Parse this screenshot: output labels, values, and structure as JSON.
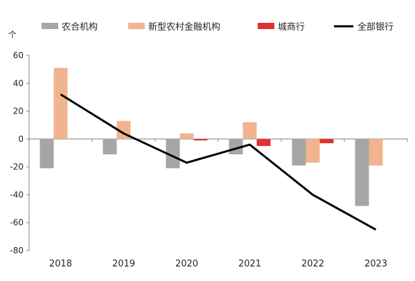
{
  "chart_data": {
    "type": "bar",
    "y_unit_label": "个",
    "categories": [
      "2018",
      "2019",
      "2020",
      "2021",
      "2022",
      "2023"
    ],
    "ylim": [
      -80,
      60
    ],
    "yticks": [
      60,
      40,
      20,
      0,
      -20,
      -40,
      -60,
      -80
    ],
    "grid": false,
    "legend_position": "top",
    "series": [
      {
        "name": "农合机构",
        "kind": "bar",
        "color": "#a6a6a6",
        "values": [
          -21,
          -11,
          -21,
          -11,
          -19,
          -48
        ]
      },
      {
        "name": "新型农村金融机构",
        "kind": "bar",
        "color": "#f0b48e",
        "values": [
          51,
          13,
          4,
          12,
          -17,
          -19
        ]
      },
      {
        "name": "城商行",
        "kind": "bar",
        "color": "#e03030",
        "values": [
          0,
          0,
          -1,
          -5,
          -3,
          0
        ]
      },
      {
        "name": "全部银行",
        "kind": "line",
        "color": "#000000",
        "values": [
          32,
          4,
          -17,
          -4,
          -40,
          -65
        ]
      }
    ]
  }
}
